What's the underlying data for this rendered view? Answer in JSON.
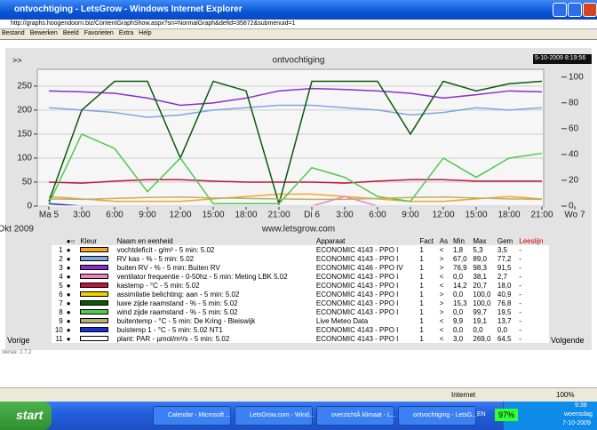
{
  "window": {
    "title": "ontvochtiging - LetsGrow - Windows Internet Explorer",
    "address": "http://graphs.hoogendoorn.biz/ContentGraphShow.aspx?sn=NormalGraph&defid=35872&submenuid=1",
    "menu": [
      "Bestand",
      "Bewerken",
      "Beeld",
      "Favorieten",
      "Extra",
      "Help"
    ]
  },
  "panel": {
    "expand": ">>",
    "timestamp": "5-10-2009 8:19:56",
    "prev": "Vorige",
    "next": "Volgende",
    "version": "Versie: 2.7.2"
  },
  "chart_data": {
    "type": "line",
    "title": "ontvochtiging",
    "annotations": [
      "Okt 2009",
      "www.letsgrow.com"
    ],
    "categories": [
      "Ma 5",
      "3:00",
      "6:00",
      "9:00",
      "12:00",
      "15:00",
      "18:00",
      "21:00",
      "Di 6",
      "3:00",
      "6:00",
      "9:00",
      "12:00",
      "15:00",
      "18:00",
      "21:00",
      "Wo 7"
    ],
    "ylim": [
      0,
      285
    ],
    "yticks": [
      0,
      50,
      100,
      150,
      200,
      250
    ],
    "y2lim": [
      0,
      106
    ],
    "y2ticks": [
      0,
      20,
      40,
      60,
      80,
      100
    ],
    "grid": true,
    "series": [
      {
        "name": "vochtdeficit - g/m³ - 5 min: 5.02",
        "color": "#f5a623",
        "values": [
          20,
          15,
          10,
          10,
          10,
          15,
          20,
          25,
          25,
          20,
          15,
          10,
          10,
          15,
          20,
          15,
          null
        ]
      },
      {
        "name": "RV kas - % - 5 min: 5.02",
        "color": "#7fa6e0",
        "values": [
          205,
          200,
          195,
          185,
          190,
          200,
          205,
          210,
          210,
          205,
          200,
          190,
          195,
          205,
          200,
          205,
          null
        ]
      },
      {
        "name": "buiten RV - % - 5 min: Buiten RV",
        "color": "#8a2fc9",
        "values": [
          240,
          238,
          235,
          225,
          210,
          215,
          225,
          240,
          245,
          243,
          240,
          235,
          225,
          232,
          240,
          238,
          null
        ]
      },
      {
        "name": "ventilator frequentie - 0-50hz - 5 min: Meting LBK 5.02",
        "color": "#f080c0",
        "values": [
          0,
          0,
          0,
          0,
          0,
          0,
          0,
          0,
          0,
          20,
          0,
          0,
          0,
          0,
          0,
          0,
          null
        ]
      },
      {
        "name": "kastemp - °C - 5 min: 5.02",
        "color": "#c0143c",
        "values": [
          50,
          48,
          52,
          55,
          55,
          52,
          50,
          50,
          50,
          48,
          52,
          55,
          55,
          52,
          52,
          52,
          null
        ]
      },
      {
        "name": "assimilatie belichting: aan - 5 min: 5.02",
        "color": "#f5d000",
        "values": [
          0,
          0,
          0,
          0,
          0,
          0,
          0,
          0,
          0,
          0,
          0,
          0,
          0,
          0,
          0,
          0,
          null
        ]
      },
      {
        "name": "luwe zijde raamstand - % - 5 min: 5.02",
        "color": "#0a5a0a",
        "values": [
          10,
          200,
          260,
          260,
          100,
          260,
          240,
          5,
          260,
          260,
          260,
          150,
          260,
          240,
          255,
          260,
          null
        ]
      },
      {
        "name": "wind zijde raamstand - % - 5 min: 5.02",
        "color": "#50c850",
        "values": [
          5,
          150,
          120,
          30,
          100,
          5,
          5,
          5,
          80,
          60,
          20,
          10,
          100,
          60,
          100,
          110,
          null
        ]
      },
      {
        "name": "buitentemp - °C - 5 min: De Kring - Bleiswijk",
        "color": "#b8b070",
        "values": [
          15,
          14,
          16,
          18,
          19,
          17,
          16,
          15,
          14,
          14,
          16,
          18,
          19,
          17,
          15,
          14,
          null
        ]
      },
      {
        "name": "buistemp 1 - °C - 5 min: 5.02 NT1",
        "color": "#1a2fd0",
        "values": [
          5,
          0,
          0,
          0,
          0,
          0,
          0,
          0,
          0,
          0,
          0,
          0,
          0,
          0,
          0,
          0,
          null
        ]
      },
      {
        "name": "plant: PAR - µmol/m²/s - 5 min: 5.02",
        "color": "#ffffff",
        "values": [
          0,
          0,
          0,
          0,
          0,
          0,
          0,
          0,
          0,
          0,
          0,
          0,
          0,
          0,
          0,
          0,
          null
        ]
      }
    ]
  },
  "legend_table": {
    "header": {
      "toggle": "●○",
      "color": "Kleur",
      "name": "Naam en eenheid",
      "device": "Apparaat",
      "fact": "Fact",
      "as": "As",
      "min": "Min",
      "max": "Max",
      "avg": "Gem",
      "read": "Leeslijn"
    },
    "rows": [
      {
        "nr": "1",
        "bullet": "●",
        "device": "ECONOMIC 4143 - PPO I",
        "fact": "1",
        "as": "<",
        "min": "1,8",
        "max": "5,3",
        "avg": "3,5",
        "read": "-"
      },
      {
        "nr": "2",
        "bullet": "●",
        "device": "ECONOMIC 4143 - PPO I",
        "fact": "1",
        "as": ">",
        "min": "67,0",
        "max": "89,0",
        "avg": "77,2",
        "read": "-"
      },
      {
        "nr": "3",
        "bullet": "●",
        "device": "ECONOMIC 4146 - PPO IV",
        "fact": "1",
        "as": ">",
        "min": "76,9",
        "max": "98,3",
        "avg": "91,5",
        "read": "-"
      },
      {
        "nr": "4",
        "bullet": "●",
        "device": "ECONOMIC 4143 - PPO I",
        "fact": "1",
        "as": "<",
        "min": "0,0",
        "max": "38,1",
        "avg": "2,7",
        "read": "-"
      },
      {
        "nr": "5",
        "bullet": "●",
        "device": "ECONOMIC 4143 - PPO I",
        "fact": "1",
        "as": "<",
        "min": "14,2",
        "max": "20,7",
        "avg": "18,0",
        "read": "-"
      },
      {
        "nr": "6",
        "bullet": "●",
        "device": "ECONOMIC 4143 - PPO I",
        "fact": "1",
        "as": ">",
        "min": "0,0",
        "max": "100,0",
        "avg": "40,9",
        "read": "-"
      },
      {
        "nr": "7",
        "bullet": "●",
        "device": "ECONOMIC 4143 - PPO I",
        "fact": "1",
        "as": ">",
        "min": "15,3",
        "max": "100,0",
        "avg": "76,8",
        "read": "-"
      },
      {
        "nr": "8",
        "bullet": "●",
        "device": "ECONOMIC 4143 - PPO I",
        "fact": "1",
        "as": ">",
        "min": "0,0",
        "max": "99,7",
        "avg": "19,5",
        "read": "-"
      },
      {
        "nr": "9",
        "bullet": "●",
        "device": "Live Meteo Data",
        "fact": "1",
        "as": "<",
        "min": "9,9",
        "max": "19,1",
        "avg": "13,7",
        "read": "-"
      },
      {
        "nr": "10",
        "bullet": "●",
        "device": "ECONOMIC 4143 - PPO I",
        "fact": "1",
        "as": "<",
        "min": "0,0",
        "max": "0,0",
        "avg": "0,0",
        "read": "-"
      },
      {
        "nr": "11",
        "bullet": "●",
        "device": "ECONOMIC 4143 - PPO I",
        "fact": "1",
        "as": "<",
        "min": "3,0",
        "max": "269,0",
        "avg": "64,5",
        "read": "-"
      }
    ]
  },
  "status": {
    "zone": "Internet",
    "zoom": "100%"
  },
  "taskbar": {
    "start": "start",
    "items": [
      "Calendar - Microsoft ...",
      "LetsGrow.com - Wind...",
      "overzichtÂ klimaat - L...",
      "ontvochtiging - LetsG..."
    ],
    "lang": "EN",
    "battery": "97%",
    "time": "9:38",
    "day": "woensdag",
    "date": "7-10-2009"
  }
}
